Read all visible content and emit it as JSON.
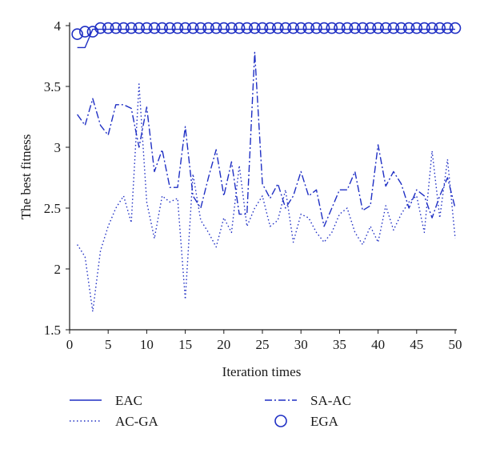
{
  "colors": {
    "series": "#1f2fc4",
    "axis": "#1a1a1a"
  },
  "chart_data": {
    "type": "line",
    "xlabel": "Iteration times",
    "ylabel": "The best fitness",
    "xlim": [
      0,
      50
    ],
    "ylim": [
      1.5,
      4
    ],
    "xticks": [
      0,
      5,
      10,
      15,
      20,
      25,
      30,
      35,
      40,
      45,
      50
    ],
    "yticks": [
      1.5,
      2,
      2.5,
      3,
      3.5,
      4
    ],
    "ytick_labels": [
      "1.5",
      "2",
      "2.5",
      "3",
      "3.5",
      "4"
    ],
    "grid": false,
    "legend_position": "bottom",
    "x": [
      1,
      2,
      3,
      4,
      5,
      6,
      7,
      8,
      9,
      10,
      11,
      12,
      13,
      14,
      15,
      16,
      17,
      18,
      19,
      20,
      21,
      22,
      23,
      24,
      25,
      26,
      27,
      28,
      29,
      30,
      31,
      32,
      33,
      34,
      35,
      36,
      37,
      38,
      39,
      40,
      41,
      42,
      43,
      44,
      45,
      46,
      47,
      48,
      49,
      50
    ],
    "series": [
      {
        "name": "EAC",
        "style": "solid",
        "values": [
          3.82,
          3.82,
          3.97,
          3.97,
          3.97,
          3.97,
          3.97,
          3.97,
          3.97,
          3.97,
          3.97,
          3.97,
          3.97,
          3.97,
          3.97,
          3.97,
          3.97,
          3.97,
          3.97,
          3.97,
          3.97,
          3.97,
          3.97,
          3.97,
          3.97,
          3.97,
          3.97,
          3.97,
          3.97,
          3.97,
          3.97,
          3.97,
          3.97,
          3.97,
          3.97,
          3.97,
          3.97,
          3.97,
          3.97,
          3.97,
          3.97,
          3.97,
          3.97,
          3.97,
          3.97,
          3.97,
          3.97,
          3.97,
          3.97,
          3.97
        ]
      },
      {
        "name": "AC-GA",
        "style": "dotted",
        "values": [
          2.2,
          2.1,
          1.65,
          2.15,
          2.35,
          2.5,
          2.6,
          2.38,
          3.52,
          2.55,
          2.25,
          2.6,
          2.55,
          2.58,
          1.75,
          2.78,
          2.4,
          2.3,
          2.18,
          2.42,
          2.3,
          2.85,
          2.35,
          2.5,
          2.6,
          2.35,
          2.4,
          2.65,
          2.22,
          2.45,
          2.42,
          2.3,
          2.22,
          2.3,
          2.45,
          2.5,
          2.3,
          2.2,
          2.35,
          2.22,
          2.52,
          2.32,
          2.45,
          2.55,
          2.6,
          2.3,
          2.97,
          2.42,
          2.9,
          2.25
        ]
      },
      {
        "name": "SA-AC",
        "style": "dashdot",
        "values": [
          3.27,
          3.18,
          3.4,
          3.18,
          3.1,
          3.35,
          3.35,
          3.32,
          3.0,
          3.33,
          2.8,
          2.98,
          2.67,
          2.67,
          3.17,
          2.6,
          2.5,
          2.75,
          2.98,
          2.6,
          2.88,
          2.45,
          2.45,
          3.78,
          2.7,
          2.58,
          2.7,
          2.5,
          2.6,
          2.8,
          2.6,
          2.65,
          2.35,
          2.5,
          2.65,
          2.65,
          2.8,
          2.48,
          2.52,
          3.02,
          2.68,
          2.8,
          2.7,
          2.5,
          2.65,
          2.6,
          2.42,
          2.6,
          2.75,
          2.5
        ]
      },
      {
        "name": "EGA",
        "style": "circle-markers",
        "values": [
          3.93,
          3.95,
          3.95,
          3.98,
          3.98,
          3.98,
          3.98,
          3.98,
          3.98,
          3.98,
          3.98,
          3.98,
          3.98,
          3.98,
          3.98,
          3.98,
          3.98,
          3.98,
          3.98,
          3.98,
          3.98,
          3.98,
          3.98,
          3.98,
          3.98,
          3.98,
          3.98,
          3.98,
          3.98,
          3.98,
          3.98,
          3.98,
          3.98,
          3.98,
          3.98,
          3.98,
          3.98,
          3.98,
          3.98,
          3.98,
          3.98,
          3.98,
          3.98,
          3.98,
          3.98,
          3.98,
          3.98,
          3.98,
          3.98,
          3.98
        ]
      }
    ]
  }
}
